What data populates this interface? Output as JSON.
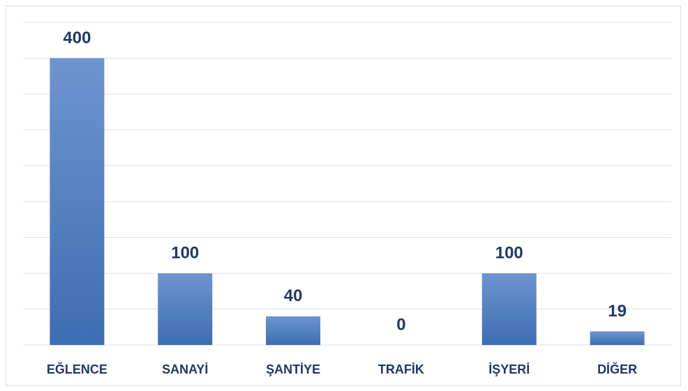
{
  "chart_data": {
    "type": "bar",
    "categories": [
      "EĞLENCE",
      "SANAYİ",
      "ŞANTİYE",
      "TRAFİK",
      "İŞYERİ",
      "DİĞER"
    ],
    "values": [
      400,
      100,
      40,
      0,
      100,
      19
    ],
    "color": "#4a7cc0",
    "ylim": [
      0,
      450
    ],
    "yticks": [
      0,
      50,
      100,
      150,
      200,
      250,
      300,
      350,
      400,
      450
    ],
    "grid": true
  }
}
